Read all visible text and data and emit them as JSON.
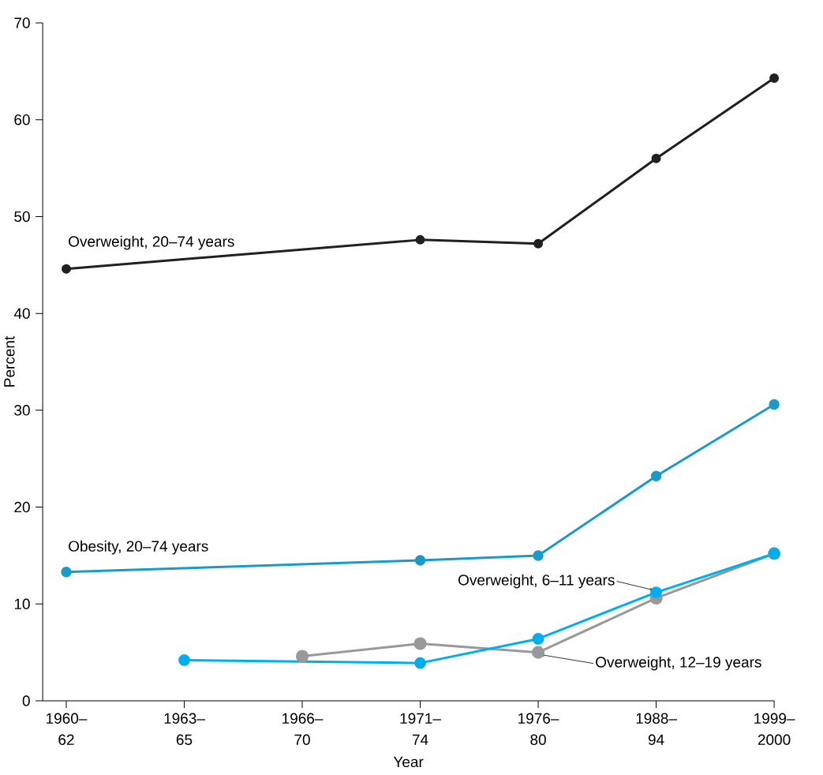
{
  "chart_data": {
    "type": "line",
    "xlabel": "Year",
    "ylabel": "Percent",
    "categories": [
      "1960– 62",
      "1963– 65",
      "1966– 70",
      "1971– 74",
      "1976– 80",
      "1988– 94",
      "1999– 2000"
    ],
    "ylim": [
      0,
      70
    ],
    "yticks": [
      0,
      10,
      20,
      30,
      40,
      50,
      60,
      70
    ],
    "marker": "circle",
    "line_style": "solid",
    "series": [
      {
        "name": "Overweight, 20–74 years",
        "color": "#231f20",
        "values": [
          44.6,
          null,
          null,
          47.6,
          47.2,
          56.0,
          64.3
        ]
      },
      {
        "name": "Obesity, 20–74 years",
        "color": "#1a9ac9",
        "values": [
          13.3,
          null,
          null,
          14.5,
          15.0,
          23.2,
          30.6
        ]
      },
      {
        "name": "Overweight, 6–11 years",
        "color": "#00aeef",
        "values": [
          null,
          4.2,
          null,
          3.9,
          6.4,
          11.2,
          15.2
        ]
      },
      {
        "name": "Overweight, 12–19 years",
        "color": "#999999",
        "values": [
          null,
          null,
          4.6,
          5.9,
          5.0,
          10.6,
          15.2
        ]
      }
    ]
  }
}
